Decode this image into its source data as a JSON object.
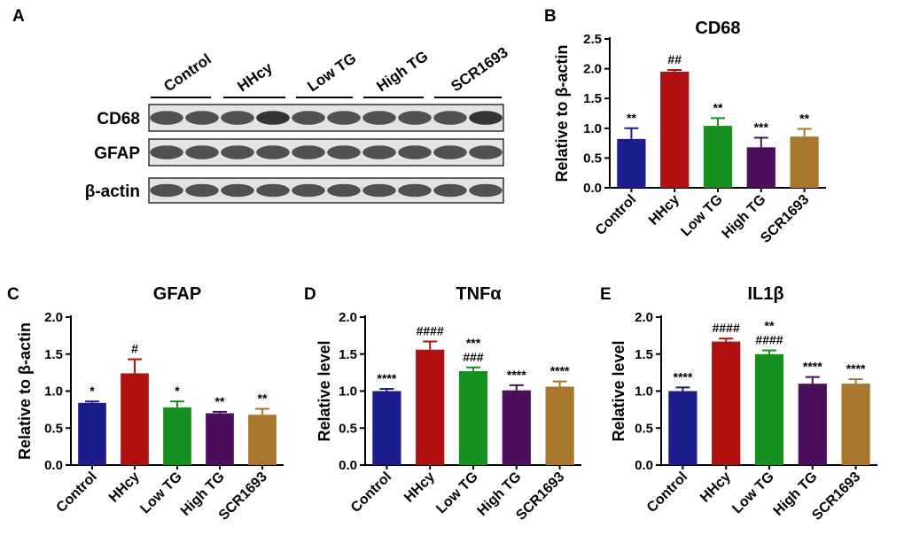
{
  "panels": {
    "A": "A",
    "B": "B",
    "C": "C",
    "D": "D",
    "E": "E"
  },
  "blot": {
    "groups": [
      "Control",
      "HHcy",
      "Low TG",
      "High TG",
      "SCR1693"
    ],
    "rows": [
      "CD68",
      "GFAP",
      "β-actin"
    ],
    "band_color": "#2a2a2a",
    "background_color": "#e4e4e4"
  },
  "colors": {
    "Control": "#1c1c8c",
    "HHcy": "#b01010",
    "Low TG": "#14901e",
    "High TG": "#4a0e5a",
    "SCR1693": "#a8762c"
  },
  "chart_data": [
    {
      "panel": "B",
      "type": "bar",
      "title": "CD68",
      "xlabel": "",
      "ylabel": "Relative to β-actin",
      "categories": [
        "Control",
        "HHcy",
        "Low TG",
        "High TG",
        "SCR1693"
      ],
      "values": [
        0.82,
        1.95,
        1.04,
        0.68,
        0.86
      ],
      "errors": [
        0.18,
        0.03,
        0.13,
        0.16,
        0.13
      ],
      "annotations": [
        [
          "**"
        ],
        [
          "##"
        ],
        [
          "**"
        ],
        [
          "***"
        ],
        [
          "**"
        ]
      ],
      "ylim": [
        0,
        2.5
      ],
      "yticks": [
        "0.0",
        "0.5",
        "1.0",
        "1.5",
        "2.0",
        "2.5"
      ]
    },
    {
      "panel": "C",
      "type": "bar",
      "title": "GFAP",
      "xlabel": "",
      "ylabel": "Relative to β-actin",
      "categories": [
        "Control",
        "HHcy",
        "Low TG",
        "High TG",
        "SCR1693"
      ],
      "values": [
        0.84,
        1.24,
        0.78,
        0.7,
        0.68
      ],
      "errors": [
        0.02,
        0.19,
        0.08,
        0.02,
        0.08
      ],
      "annotations": [
        [
          "*"
        ],
        [
          "#"
        ],
        [
          "*"
        ],
        [
          "**"
        ],
        [
          "**"
        ]
      ],
      "ylim": [
        0,
        2.0
      ],
      "yticks": [
        "0.0",
        "0.5",
        "1.0",
        "1.5",
        "2.0"
      ]
    },
    {
      "panel": "D",
      "type": "bar",
      "title": "TNFα",
      "xlabel": "",
      "ylabel": "Relative level",
      "categories": [
        "Control",
        "HHcy",
        "Low TG",
        "High TG",
        "SCR1693"
      ],
      "values": [
        1.0,
        1.56,
        1.27,
        1.01,
        1.06
      ],
      "errors": [
        0.03,
        0.11,
        0.05,
        0.07,
        0.07
      ],
      "annotations": [
        [
          "****"
        ],
        [
          "####"
        ],
        [
          "***",
          "###"
        ],
        [
          "****"
        ],
        [
          "****"
        ]
      ],
      "ylim": [
        0,
        2.0
      ],
      "yticks": [
        "0.0",
        "0.5",
        "1.0",
        "1.5",
        "2.0"
      ]
    },
    {
      "panel": "E",
      "type": "bar",
      "title": "IL1β",
      "xlabel": "",
      "ylabel": "Relative level",
      "categories": [
        "Control",
        "HHcy",
        "Low TG",
        "High TG",
        "SCR1693"
      ],
      "values": [
        1.0,
        1.67,
        1.5,
        1.1,
        1.1
      ],
      "errors": [
        0.05,
        0.04,
        0.05,
        0.09,
        0.06
      ],
      "annotations": [
        [
          "****"
        ],
        [
          "####"
        ],
        [
          "**",
          "####"
        ],
        [
          "****"
        ],
        [
          "****"
        ]
      ],
      "ylim": [
        0,
        2.0
      ],
      "yticks": [
        "0.0",
        "0.5",
        "1.0",
        "1.5",
        "2.0"
      ]
    }
  ]
}
